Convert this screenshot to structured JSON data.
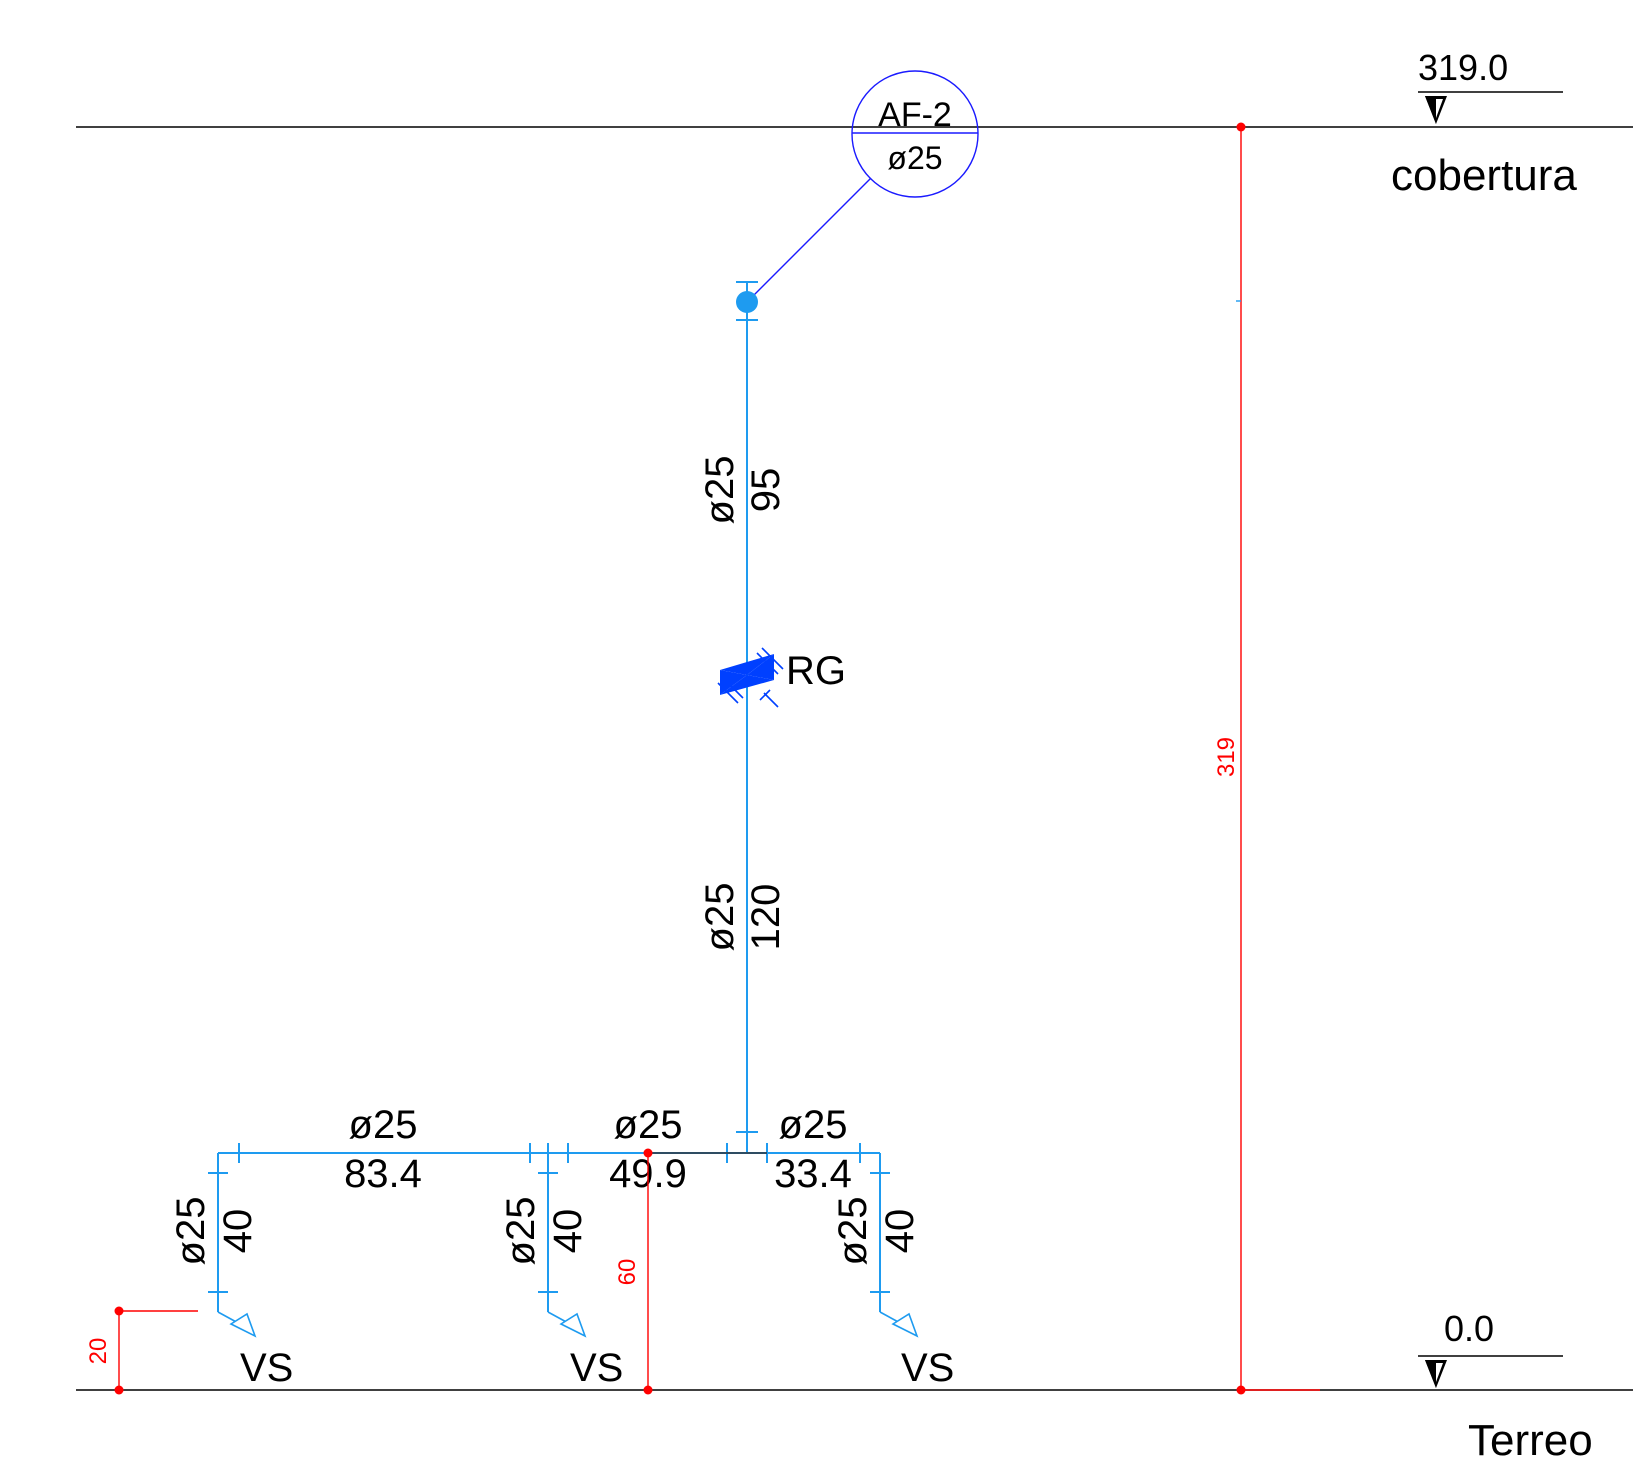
{
  "levels": {
    "top": {
      "elevation": "319.0",
      "name": "cobertura"
    },
    "bottom": {
      "elevation": "0.0",
      "name": "Terreo"
    }
  },
  "riser_tag": {
    "id": "AF-2",
    "diameter": "ø25"
  },
  "valve": {
    "label": "RG"
  },
  "pipes": {
    "riser_upper": {
      "diameter": "ø25",
      "length": "95"
    },
    "riser_lower": {
      "diameter": "ø25",
      "length": "120"
    },
    "branch_left": {
      "diameter": "ø25",
      "length": "83.4"
    },
    "branch_mid": {
      "diameter": "ø25",
      "length": "49.9"
    },
    "branch_right": {
      "diameter": "ø25",
      "length": "33.4"
    },
    "drop_left": {
      "diameter": "ø25",
      "length": "40"
    },
    "drop_mid": {
      "diameter": "ø25",
      "length": "40"
    },
    "drop_right": {
      "diameter": "ø25",
      "length": "40"
    }
  },
  "outlets": [
    {
      "label": "VS"
    },
    {
      "label": "VS"
    },
    {
      "label": "VS"
    }
  ],
  "dimensions": {
    "total_height": "319",
    "branch_height": "60",
    "outlet_height": "20"
  },
  "colors": {
    "pipe": "#1e9bf0",
    "tag": "#1a1aff",
    "valve": "#0040ff",
    "dimension": "#ff0000",
    "level_line": "#000000"
  }
}
